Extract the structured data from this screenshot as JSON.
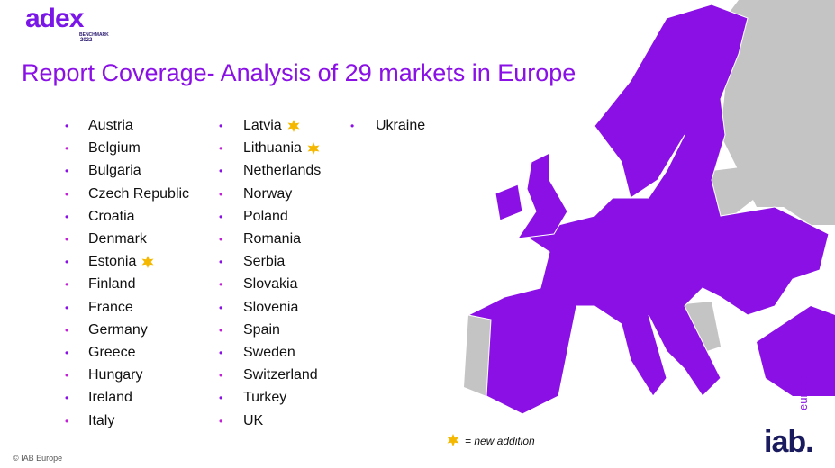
{
  "logo": {
    "name": "adex",
    "subtitle": "BENCHMARK",
    "year": "2022"
  },
  "title": "Report Coverage- Analysis of 29 markets in Europe",
  "columns": [
    [
      {
        "name": "Austria"
      },
      {
        "name": "Belgium"
      },
      {
        "name": "Bulgaria"
      },
      {
        "name": "Czech Republic"
      },
      {
        "name": "Croatia"
      },
      {
        "name": "Denmark"
      },
      {
        "name": "Estonia",
        "new": true
      },
      {
        "name": "Finland"
      },
      {
        "name": "France"
      },
      {
        "name": "Germany"
      },
      {
        "name": "Greece"
      },
      {
        "name": "Hungary"
      },
      {
        "name": "Ireland"
      },
      {
        "name": "Italy"
      }
    ],
    [
      {
        "name": "Latvia",
        "new": true
      },
      {
        "name": "Lithuania",
        "new": true
      },
      {
        "name": "Netherlands"
      },
      {
        "name": "Norway"
      },
      {
        "name": "Poland"
      },
      {
        "name": "Romania"
      },
      {
        "name": "Serbia"
      },
      {
        "name": "Slovakia"
      },
      {
        "name": "Slovenia"
      },
      {
        "name": "Spain"
      },
      {
        "name": "Sweden"
      },
      {
        "name": "Switzerland"
      },
      {
        "name": "Turkey"
      },
      {
        "name": "UK"
      }
    ],
    [
      {
        "name": "Ukraine"
      }
    ]
  ],
  "bullet": "•",
  "legend": "= new addition",
  "footer": "© IAB Europe",
  "brand": {
    "name": "iab.",
    "tag": "europe"
  }
}
